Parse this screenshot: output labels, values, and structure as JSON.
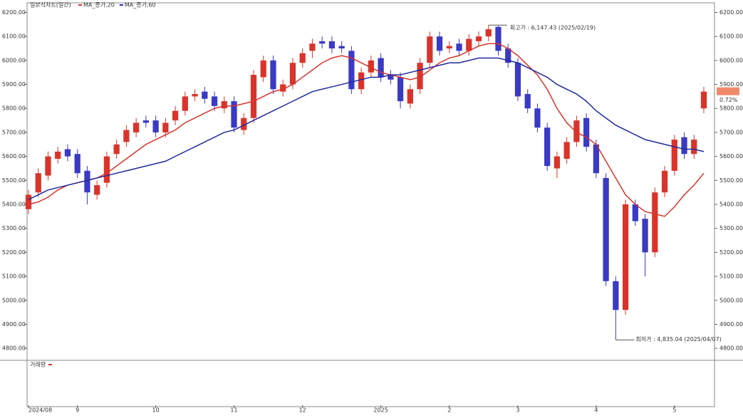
{
  "chart_data": {
    "type": "candlestick",
    "title": "일본식차트(일간)",
    "categories": [
      "2024/08",
      null,
      null,
      null,
      null,
      "9",
      null,
      null,
      null,
      null,
      null,
      null,
      null,
      "10",
      null,
      null,
      null,
      null,
      null,
      null,
      null,
      "11",
      null,
      null,
      null,
      null,
      null,
      null,
      "12",
      null,
      null,
      null,
      null,
      null,
      null,
      null,
      "2025",
      null,
      null,
      null,
      null,
      null,
      null,
      "2",
      null,
      null,
      null,
      null,
      null,
      null,
      "3",
      null,
      null,
      null,
      null,
      null,
      null,
      null,
      "4",
      null,
      null,
      null,
      null,
      null,
      null,
      null,
      "5",
      null,
      null,
      null
    ],
    "open": [
      5380,
      5450,
      5520,
      5590,
      5630,
      5610,
      5540,
      5440,
      5490,
      5610,
      5660,
      5700,
      5750,
      5750,
      5700,
      5750,
      5790,
      5850,
      5870,
      5850,
      5800,
      5830,
      5710,
      5760,
      5930,
      6000,
      5870,
      5900,
      5990,
      6040,
      6080,
      6080,
      6060,
      6040,
      5880,
      5950,
      6010,
      5940,
      5930,
      5820,
      5880,
      5990,
      6100,
      6050,
      6070,
      6040,
      6080,
      6100,
      6140,
      6050,
      5990,
      5860,
      5800,
      5720,
      5550,
      5590,
      5660,
      5760,
      5650,
      5510,
      5080,
      4960,
      5400,
      5340,
      5200,
      5450,
      5540,
      5680,
      5610,
      5800
    ],
    "high": [
      5460,
      5550,
      5620,
      5640,
      5650,
      5630,
      5560,
      5500,
      5620,
      5670,
      5730,
      5760,
      5770,
      5770,
      5760,
      5810,
      5870,
      5880,
      5890,
      5870,
      5850,
      5850,
      5780,
      5960,
      6020,
      6020,
      5920,
      6010,
      6050,
      6090,
      6100,
      6100,
      6080,
      6060,
      5970,
      6020,
      6030,
      5960,
      5950,
      5900,
      6010,
      6120,
      6120,
      6080,
      6090,
      6110,
      6120,
      6147.43,
      6145,
      6070,
      6010,
      5880,
      5820,
      5740,
      5620,
      5680,
      5770,
      5780,
      5670,
      5530,
      5100,
      5420,
      5420,
      5360,
      5470,
      5560,
      5690,
      5700,
      5690,
      5890
    ],
    "low": [
      5360,
      5430,
      5500,
      5570,
      5580,
      5510,
      5400,
      5420,
      5470,
      5590,
      5640,
      5680,
      5720,
      5680,
      5680,
      5730,
      5770,
      5830,
      5820,
      5790,
      5780,
      5700,
      5690,
      5740,
      5910,
      5860,
      5850,
      5880,
      5970,
      6010,
      6050,
      6030,
      6030,
      5860,
      5860,
      5930,
      5910,
      5900,
      5800,
      5800,
      5860,
      5970,
      6020,
      6030,
      6020,
      6020,
      6060,
      6080,
      6020,
      5970,
      5830,
      5780,
      5700,
      5540,
      5510,
      5570,
      5640,
      5620,
      5510,
      5060,
      4835.04,
      4940,
      5310,
      5100,
      5180,
      5430,
      5520,
      5590,
      5590,
      5780
    ],
    "close": [
      5440,
      5530,
      5600,
      5620,
      5600,
      5530,
      5450,
      5480,
      5600,
      5650,
      5710,
      5740,
      5740,
      5700,
      5740,
      5790,
      5850,
      5860,
      5840,
      5810,
      5830,
      5720,
      5760,
      5940,
      6000,
      5880,
      5900,
      5990,
      6030,
      6070,
      6070,
      6050,
      6050,
      5880,
      5950,
      6000,
      5930,
      5920,
      5830,
      5880,
      5990,
      6100,
      6040,
      6060,
      6040,
      6090,
      6100,
      6130,
      6040,
      5990,
      5850,
      5800,
      5720,
      5560,
      5600,
      5660,
      5750,
      5640,
      5530,
      5080,
      4960,
      5400,
      5330,
      5200,
      5450,
      5540,
      5670,
      5610,
      5670,
      5870
    ],
    "up_color": "#d9342b",
    "down_color": "#3a3ac4",
    "series": [
      {
        "name": "MA_종가,20",
        "color": "#d9342b",
        "values": [
          5400,
          5410,
          5430,
          5460,
          5480,
          5490,
          5500,
          5510,
          5530,
          5560,
          5590,
          5620,
          5650,
          5670,
          5690,
          5710,
          5740,
          5760,
          5780,
          5800,
          5810,
          5810,
          5820,
          5830,
          5850,
          5870,
          5880,
          5900,
          5930,
          5960,
          5990,
          6010,
          6020,
          6010,
          5990,
          5970,
          5950,
          5940,
          5930,
          5920,
          5930,
          5960,
          5990,
          6010,
          6020,
          6040,
          6060,
          6070,
          6070,
          6050,
          6020,
          5980,
          5940,
          5880,
          5800,
          5740,
          5700,
          5680,
          5650,
          5580,
          5510,
          5440,
          5400,
          5370,
          5360,
          5350,
          5390,
          5440,
          5480,
          5530
        ]
      },
      {
        "name": "MA_종가,60",
        "color": "#1f2a9e",
        "values": [
          5420,
          5440,
          5460,
          5470,
          5480,
          5490,
          5500,
          5510,
          5520,
          5530,
          5540,
          5550,
          5560,
          5570,
          5580,
          5600,
          5620,
          5640,
          5660,
          5680,
          5700,
          5710,
          5730,
          5750,
          5770,
          5790,
          5810,
          5830,
          5850,
          5870,
          5880,
          5890,
          5900,
          5910,
          5920,
          5930,
          5930,
          5940,
          5940,
          5950,
          5960,
          5970,
          5980,
          5990,
          5990,
          6000,
          6010,
          6010,
          6010,
          6000,
          5990,
          5970,
          5950,
          5930,
          5900,
          5880,
          5860,
          5830,
          5790,
          5760,
          5730,
          5710,
          5690,
          5670,
          5660,
          5650,
          5640,
          5630,
          5630,
          5620
        ]
      }
    ],
    "ylim": [
      4750,
      6240
    ],
    "yticks": [
      {
        "value": 4800,
        "label": "4800.00"
      },
      {
        "value": 4900,
        "label": "4900.00"
      },
      {
        "value": 5000,
        "label": "5000.00"
      },
      {
        "value": 5100,
        "label": "5100.00"
      },
      {
        "value": 5200,
        "label": "5200.00"
      },
      {
        "value": 5300,
        "label": "5300.00"
      },
      {
        "value": 5400,
        "label": "5400.00"
      },
      {
        "value": 5500,
        "label": "5500.00"
      },
      {
        "value": 5600,
        "label": "5600.00"
      },
      {
        "value": 5700,
        "label": "5700.00"
      },
      {
        "value": 5800,
        "label": "5800.00"
      },
      {
        "value": 5900,
        "label": "5900.00"
      },
      {
        "value": 6000,
        "label": "6000.00"
      },
      {
        "value": 6100,
        "label": "6100.00"
      },
      {
        "value": 6200,
        "label": "6200.00"
      }
    ],
    "annotations": [
      {
        "text": "최고가 : 6,147.43 (2025/02/19)",
        "color": "#d9342b"
      },
      {
        "text": "최저가 : 4,835.04 (2025/04/07)",
        "color": "#1f2a9e"
      }
    ],
    "change_label": "0.72%",
    "volume_panel_title": "거래량"
  }
}
